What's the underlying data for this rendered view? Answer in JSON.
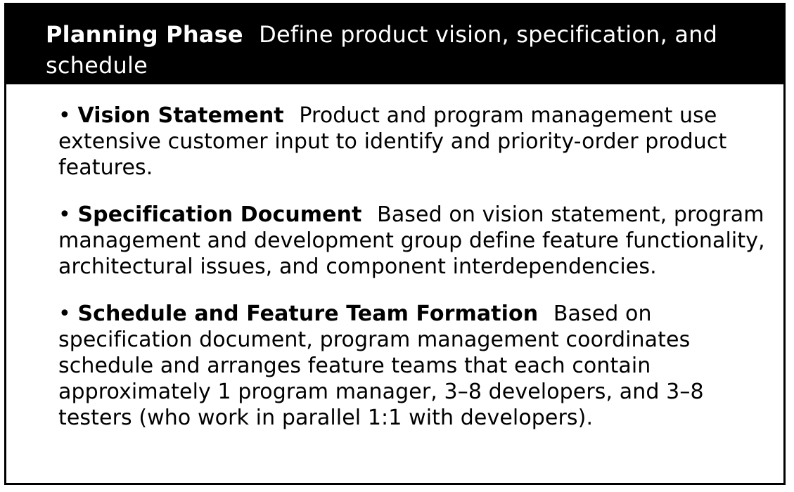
{
  "header": {
    "title": "Planning Phase",
    "subtitle": "Define product vision, specification, and schedule"
  },
  "items": [
    {
      "bullet": "•",
      "label": "Vision Statement",
      "text": "Product and program management use extensive customer input to identify and priority-order product features."
    },
    {
      "bullet": "•",
      "label": "Specification Document",
      "text": "Based on vision statement, program management and development group define feature functionality, architectural issues, and component interdependencies."
    },
    {
      "bullet": "•",
      "label": "Schedule and Feature Team Formation",
      "text": "Based on specification document, program management coordinates schedule and arranges feature teams that each contain approximately 1 program manager, 3–8 developers, and 3–8 testers (who work in parallel 1:1 with developers)."
    }
  ]
}
